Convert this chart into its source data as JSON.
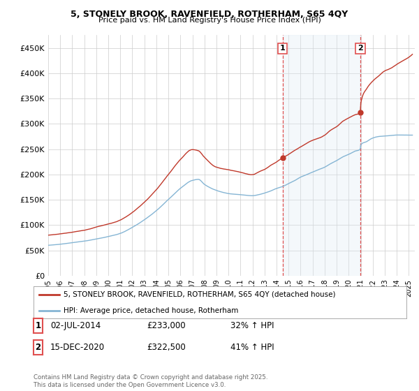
{
  "title_line1": "5, STONELY BROOK, RAVENFIELD, ROTHERHAM, S65 4QY",
  "title_line2": "Price paid vs. HM Land Registry's House Price Index (HPI)",
  "ylabel_values": [
    "£0",
    "£50K",
    "£100K",
    "£150K",
    "£200K",
    "£250K",
    "£300K",
    "£350K",
    "£400K",
    "£450K"
  ],
  "ytick_values": [
    0,
    50000,
    100000,
    150000,
    200000,
    250000,
    300000,
    350000,
    400000,
    450000
  ],
  "ylim": [
    0,
    475000
  ],
  "xlim_start": 1995.0,
  "xlim_end": 2025.5,
  "xtick_years": [
    1995,
    1996,
    1997,
    1998,
    1999,
    2000,
    2001,
    2002,
    2003,
    2004,
    2005,
    2006,
    2007,
    2008,
    2009,
    2010,
    2011,
    2012,
    2013,
    2014,
    2015,
    2016,
    2017,
    2018,
    2019,
    2020,
    2021,
    2022,
    2023,
    2024,
    2025
  ],
  "sale1_date": 2014.5,
  "sale1_price": 233000,
  "sale2_date": 2020.96,
  "sale2_price": 322500,
  "line_color_red": "#c0392b",
  "line_color_blue": "#85b5d4",
  "vline_color": "#e05050",
  "shade_color": "#dce9f5",
  "legend_label_red": "5, STONELY BROOK, RAVENFIELD, ROTHERHAM, S65 4QY (detached house)",
  "legend_label_blue": "HPI: Average price, detached house, Rotherham",
  "footnote": "Contains HM Land Registry data © Crown copyright and database right 2025.\nThis data is licensed under the Open Government Licence v3.0.",
  "bg_color": "#ffffff",
  "grid_color": "#cccccc",
  "table_row1": [
    "1",
    "02-JUL-2014",
    "£233,000",
    "32% ↑ HPI"
  ],
  "table_row2": [
    "2",
    "15-DEC-2020",
    "£322,500",
    "41% ↑ HPI"
  ],
  "red_keypoints_x": [
    1995.0,
    1996.0,
    1997.0,
    1998.0,
    1999.0,
    2000.0,
    2001.0,
    2002.0,
    2003.0,
    2004.0,
    2005.0,
    2006.0,
    2007.0,
    2007.5,
    2008.0,
    2009.0,
    2010.0,
    2011.0,
    2012.0,
    2012.5,
    2013.0,
    2013.5,
    2014.0,
    2014.5,
    2015.0,
    2015.5,
    2016.0,
    2016.5,
    2017.0,
    2017.5,
    2018.0,
    2018.5,
    2019.0,
    2019.5,
    2020.0,
    2020.5,
    2020.96,
    2021.0,
    2021.5,
    2022.0,
    2022.5,
    2023.0,
    2023.5,
    2024.0,
    2024.5,
    2025.0,
    2025.3
  ],
  "red_keypoints_y": [
    80000,
    82000,
    86000,
    90000,
    96000,
    102000,
    110000,
    125000,
    145000,
    170000,
    200000,
    230000,
    250000,
    248000,
    235000,
    215000,
    210000,
    205000,
    200000,
    205000,
    210000,
    218000,
    225000,
    233000,
    240000,
    248000,
    255000,
    262000,
    268000,
    272000,
    278000,
    288000,
    295000,
    305000,
    312000,
    318000,
    322500,
    340000,
    370000,
    385000,
    395000,
    405000,
    410000,
    418000,
    425000,
    432000,
    438000
  ],
  "blue_keypoints_x": [
    1995.0,
    1996.0,
    1997.0,
    1998.0,
    1999.0,
    2000.0,
    2001.0,
    2002.0,
    2003.0,
    2004.0,
    2005.0,
    2006.0,
    2007.0,
    2007.5,
    2008.0,
    2009.0,
    2010.0,
    2011.0,
    2012.0,
    2012.5,
    2013.0,
    2013.5,
    2014.0,
    2014.5,
    2015.0,
    2015.5,
    2016.0,
    2016.5,
    2017.0,
    2017.5,
    2018.0,
    2018.5,
    2019.0,
    2019.5,
    2020.0,
    2020.5,
    2020.96,
    2021.0,
    2021.5,
    2022.0,
    2022.5,
    2023.0,
    2023.5,
    2024.0,
    2024.5,
    2025.0,
    2025.3
  ],
  "blue_keypoints_y": [
    60000,
    62000,
    65000,
    68000,
    72000,
    77000,
    83000,
    95000,
    110000,
    128000,
    150000,
    172000,
    188000,
    190000,
    180000,
    168000,
    162000,
    160000,
    158000,
    160000,
    163000,
    167000,
    172000,
    176000,
    182000,
    188000,
    195000,
    200000,
    205000,
    210000,
    215000,
    222000,
    228000,
    235000,
    240000,
    246000,
    250000,
    258000,
    265000,
    272000,
    275000,
    276000,
    277000,
    278000,
    278000,
    278000,
    278000
  ]
}
